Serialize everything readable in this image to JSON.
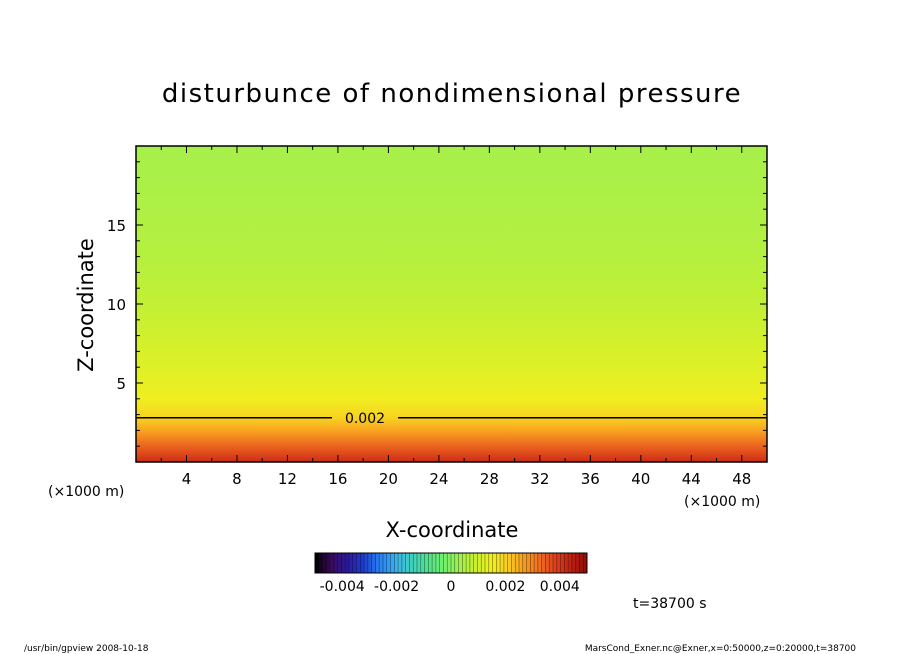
{
  "chart_data": {
    "type": "heatmap",
    "title": "disturbunce of nondimensional pressure",
    "xlabel": "X-coordinate",
    "ylabel": "Z-coordinate",
    "x_unit_label_left": "(×1000 m)",
    "x_unit_label_right": "(×1000 m)",
    "xlim": [
      0,
      50
    ],
    "ylim": [
      0,
      20
    ],
    "x_ticks": [
      "4",
      "8",
      "12",
      "16",
      "20",
      "24",
      "28",
      "32",
      "36",
      "40",
      "44",
      "48"
    ],
    "x_tick_values": [
      4,
      8,
      12,
      16,
      20,
      24,
      28,
      32,
      36,
      40,
      44,
      48
    ],
    "y_ticks": [
      "5",
      "10",
      "15"
    ],
    "y_tick_values": [
      5,
      10,
      15
    ],
    "contour": {
      "value": 0.002,
      "label": "0.002",
      "z_level": 2.8
    },
    "field_profile": {
      "description_of_layers": "horizontally uniform field varying with height",
      "z": [
        0,
        1,
        2,
        2.8,
        4,
        6,
        8,
        10,
        13,
        16,
        20
      ],
      "value": [
        0.0042,
        0.0034,
        0.0026,
        0.002,
        0.0015,
        0.0012,
        0.001,
        0.0008,
        0.0006,
        0.0005,
        0.0004
      ]
    },
    "colorbar": {
      "range": [
        -0.005,
        0.005
      ],
      "tick_labels": [
        "-0.004",
        "-0.002",
        "0",
        "0.002",
        "0.004"
      ],
      "colors": [
        "#000000",
        "#3a0a5a",
        "#2a1a9a",
        "#1f3ad0",
        "#2a7ef0",
        "#3ab0f0",
        "#40d0c0",
        "#50e090",
        "#70f070",
        "#a0f050",
        "#c8f030",
        "#f0f020",
        "#f8d020",
        "#f8a020",
        "#f07020",
        "#e04020",
        "#c02010",
        "#8a1008"
      ]
    },
    "time_label": "t=38700 s"
  },
  "footer": {
    "left": "/usr/bin/gpview   2008-10-18",
    "right": "MarsCond_Exner.nc@Exner,x=0:50000,z=0:20000,t=38700"
  }
}
